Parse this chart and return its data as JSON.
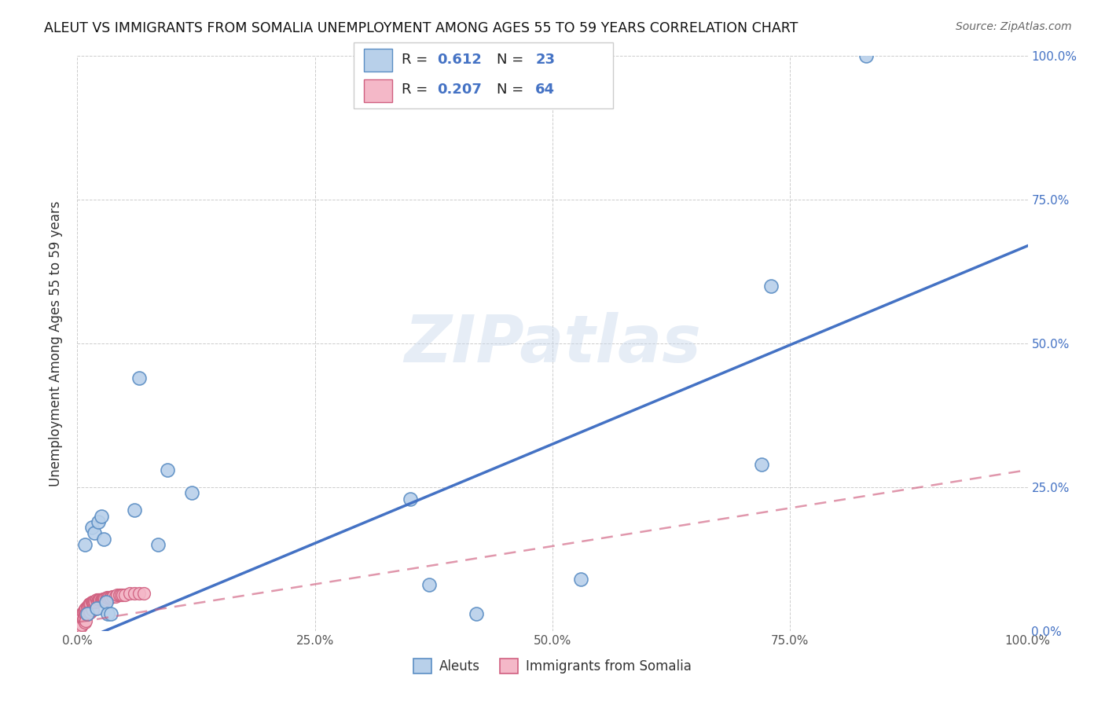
{
  "title": "ALEUT VS IMMIGRANTS FROM SOMALIA UNEMPLOYMENT AMONG AGES 55 TO 59 YEARS CORRELATION CHART",
  "source": "Source: ZipAtlas.com",
  "ylabel": "Unemployment Among Ages 55 to 59 years",
  "xlim": [
    0,
    1.0
  ],
  "ylim": [
    0,
    1.0
  ],
  "xticks": [
    0,
    0.25,
    0.5,
    0.75,
    1.0
  ],
  "xticklabels": [
    "0.0%",
    "25.0%",
    "50.0%",
    "75.0%",
    "100.0%"
  ],
  "yticks": [
    0,
    0.25,
    0.5,
    0.75,
    1.0
  ],
  "yticklabels": [
    "0.0%",
    "25.0%",
    "50.0%",
    "75.0%",
    "100.0%"
  ],
  "legend_bottom": [
    "Aleuts",
    "Immigrants from Somalia"
  ],
  "aleut_color": "#b8d0ea",
  "aleut_edge_color": "#5b8ec4",
  "aleut_line_color": "#4472c4",
  "somalia_color": "#f4b8c8",
  "somalia_edge_color": "#d06080",
  "somalia_line_color": "#d06080",
  "aleut_R": 0.612,
  "aleut_N": 23,
  "somalia_R": 0.207,
  "somalia_N": 64,
  "aleut_x": [
    0.008,
    0.01,
    0.015,
    0.018,
    0.02,
    0.022,
    0.025,
    0.028,
    0.03,
    0.032,
    0.035,
    0.06,
    0.065,
    0.085,
    0.095,
    0.12,
    0.35,
    0.37,
    0.42,
    0.53,
    0.72,
    0.73,
    0.83
  ],
  "aleut_y": [
    0.15,
    0.03,
    0.18,
    0.17,
    0.04,
    0.19,
    0.2,
    0.16,
    0.05,
    0.03,
    0.03,
    0.21,
    0.44,
    0.15,
    0.28,
    0.24,
    0.23,
    0.08,
    0.03,
    0.09,
    0.29,
    0.6,
    1.0
  ],
  "somalia_x": [
    0.003,
    0.003,
    0.003,
    0.004,
    0.004,
    0.004,
    0.005,
    0.005,
    0.005,
    0.006,
    0.006,
    0.007,
    0.007,
    0.008,
    0.008,
    0.008,
    0.009,
    0.009,
    0.009,
    0.01,
    0.01,
    0.011,
    0.011,
    0.012,
    0.012,
    0.013,
    0.013,
    0.014,
    0.014,
    0.015,
    0.015,
    0.016,
    0.016,
    0.017,
    0.018,
    0.019,
    0.02,
    0.021,
    0.022,
    0.023,
    0.024,
    0.025,
    0.026,
    0.027,
    0.028,
    0.029,
    0.03,
    0.031,
    0.032,
    0.033,
    0.034,
    0.035,
    0.037,
    0.038,
    0.04,
    0.042,
    0.044,
    0.046,
    0.048,
    0.05,
    0.055,
    0.06,
    0.065,
    0.07
  ],
  "somalia_y": [
    0.02,
    0.015,
    0.008,
    0.025,
    0.018,
    0.008,
    0.03,
    0.022,
    0.01,
    0.032,
    0.02,
    0.035,
    0.022,
    0.038,
    0.028,
    0.015,
    0.04,
    0.03,
    0.018,
    0.042,
    0.028,
    0.044,
    0.03,
    0.046,
    0.032,
    0.048,
    0.034,
    0.048,
    0.033,
    0.05,
    0.036,
    0.05,
    0.036,
    0.05,
    0.052,
    0.05,
    0.054,
    0.052,
    0.054,
    0.054,
    0.055,
    0.055,
    0.055,
    0.056,
    0.056,
    0.056,
    0.055,
    0.058,
    0.057,
    0.058,
    0.058,
    0.058,
    0.06,
    0.06,
    0.06,
    0.062,
    0.062,
    0.062,
    0.063,
    0.063,
    0.065,
    0.065,
    0.065,
    0.065
  ],
  "aleut_line_x0": 0.0,
  "aleut_line_y0": -0.02,
  "aleut_line_x1": 1.0,
  "aleut_line_y1": 0.67,
  "somalia_line_x0": 0.0,
  "somalia_line_y0": 0.015,
  "somalia_line_x1": 1.0,
  "somalia_line_y1": 0.28,
  "watermark_text": "ZIPatlas",
  "background_color": "#ffffff",
  "grid_color": "#cccccc"
}
